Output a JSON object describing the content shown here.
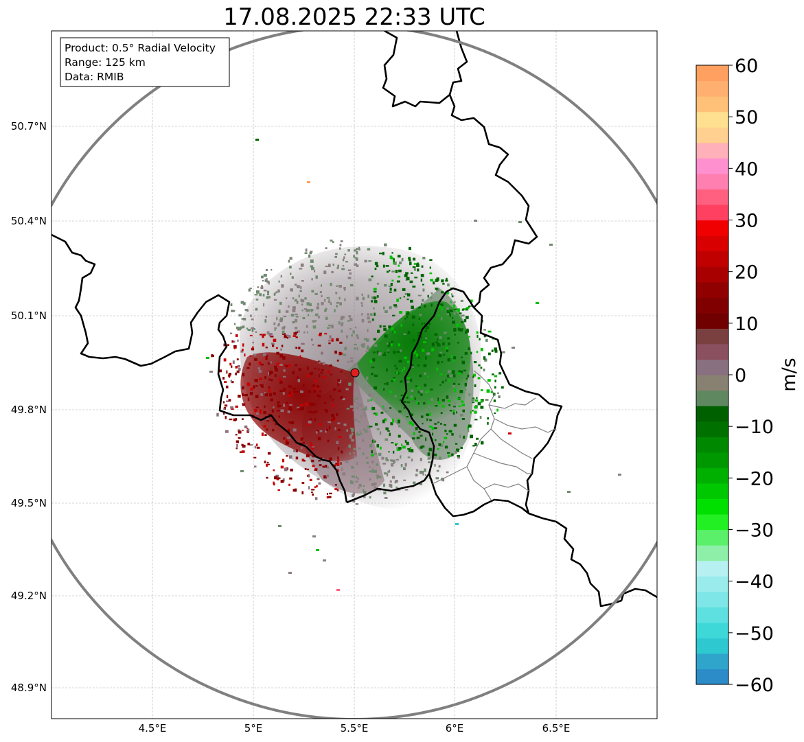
{
  "title": "17.08.2025 22:33 UTC",
  "info_box": {
    "product": "Product: 0.5° Radial Velocity",
    "range": "Range: 125 km",
    "data": "Data: RMIB"
  },
  "map": {
    "lat_ticks": [
      "50.7°N",
      "50.4°N",
      "50.1°N",
      "49.8°N",
      "49.5°N",
      "49.2°N",
      "48.9°N"
    ],
    "lon_ticks": [
      "4.5°E",
      "5°E",
      "5.5°E",
      "6°E",
      "6.5°E"
    ],
    "extent": {
      "lon_min": 4.0,
      "lon_max": 7.0,
      "lat_min": 48.8,
      "lat_max": 50.99
    },
    "radar_site": {
      "lon": 5.505,
      "lat": 49.914
    },
    "range_km": 125,
    "grid": true,
    "range_ring_color": "#808080",
    "border_color": "#000000",
    "admin_border_color": "#808080",
    "site_marker_color": "#e02020"
  },
  "colorbar": {
    "label": "m/s",
    "ticks": [
      "60",
      "50",
      "40",
      "30",
      "20",
      "10",
      "0",
      "−10",
      "−20",
      "−30",
      "−40",
      "−50",
      "−60"
    ],
    "min": -60,
    "max": 60,
    "colors": [
      "#2b8cc8",
      "#2fa5cc",
      "#2ec8d0",
      "#3fd8d8",
      "#5fe0e0",
      "#7ee6e6",
      "#9aecec",
      "#b6f0f0",
      "#8ef0a8",
      "#5af06a",
      "#22f022",
      "#00e000",
      "#00c800",
      "#00b000",
      "#009800",
      "#008800",
      "#007000",
      "#006000",
      "#608860",
      "#888070",
      "#887080",
      "#8a5060",
      "#7a4040",
      "#700000",
      "#800000",
      "#900000",
      "#a80000",
      "#c00000",
      "#d80000",
      "#f00000",
      "#ff4060",
      "#ff6080",
      "#ff80b0",
      "#ff90d0",
      "#ffb0b8",
      "#ffd090",
      "#ffe090",
      "#ffc078",
      "#ffb070",
      "#ffa060"
    ]
  },
  "echo_colors": {
    "outbound_red": "#8b0000",
    "outbound_bright": "#c80000",
    "inbound_green": "#006400",
    "inbound_bright": "#00c000",
    "near_zero_grey": "#8a7f7f",
    "near_zero_green": "#6f8a6f",
    "near_zero_mauve": "#8c6f7a"
  }
}
